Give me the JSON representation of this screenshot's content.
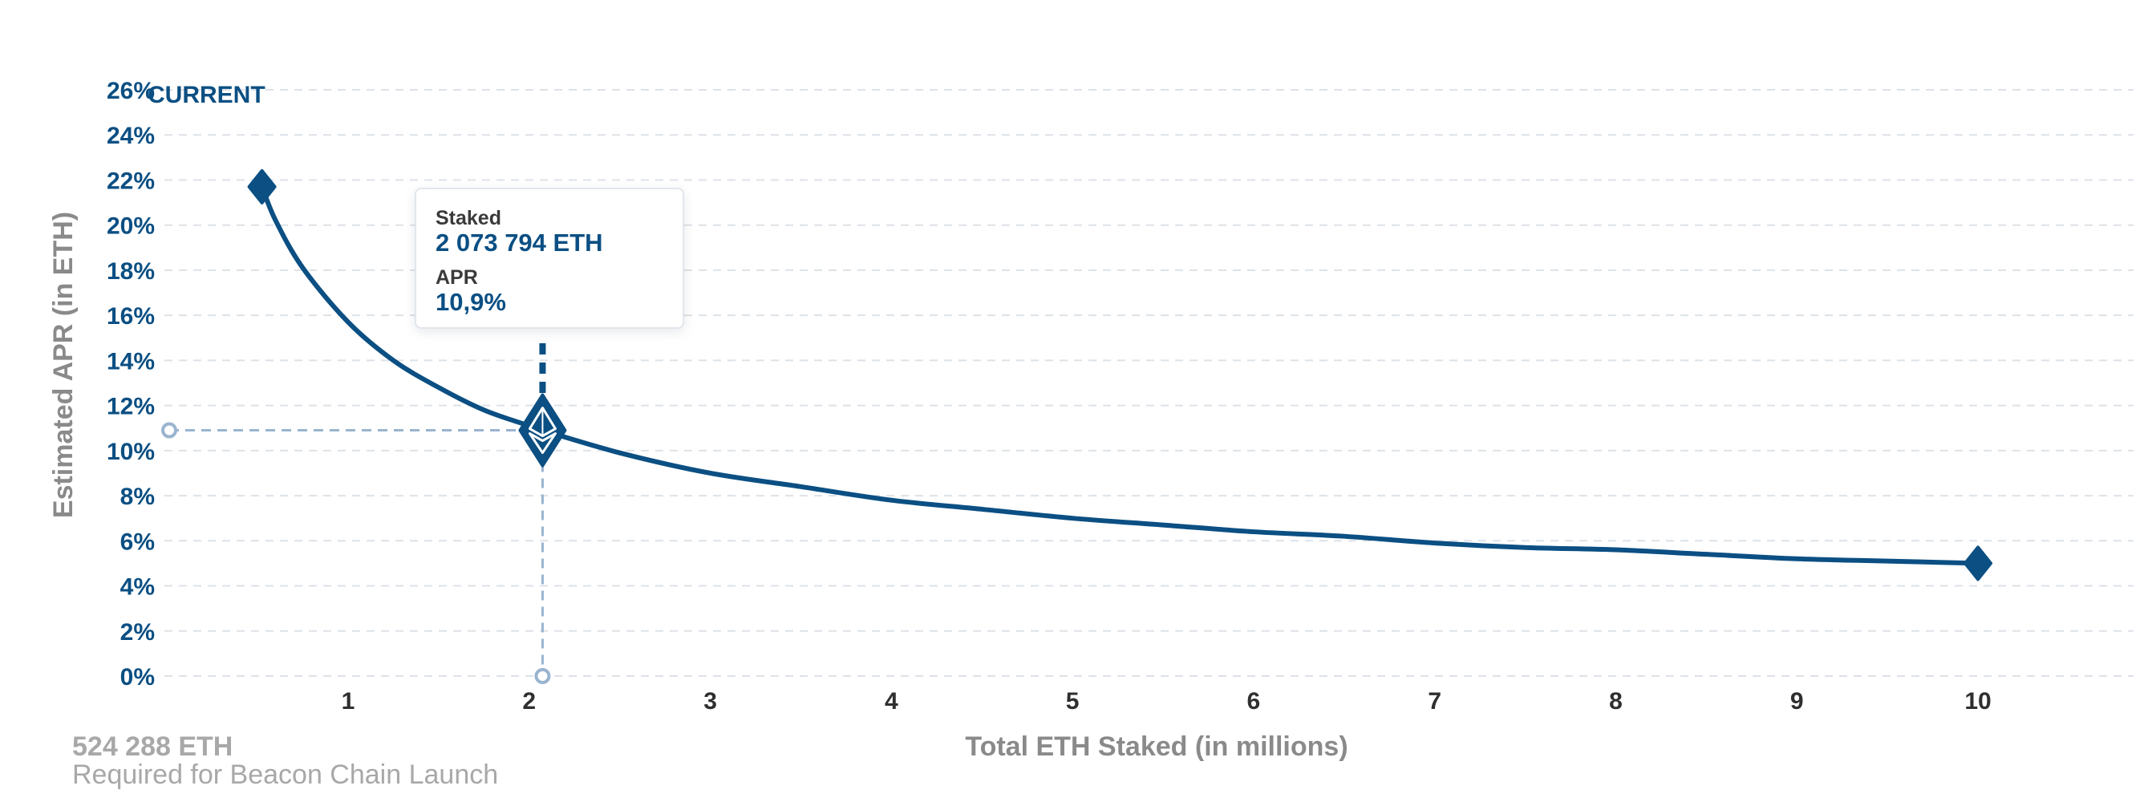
{
  "chart_data": {
    "type": "line",
    "ylabel": "Estimated APR (in ETH)",
    "xlabel": "Total ETH Staked  (in millions)",
    "ylim": [
      0,
      26
    ],
    "xlim": [
      0,
      10.8
    ],
    "yticks": [
      "0%",
      "2%",
      "4%",
      "6%",
      "8%",
      "10%",
      "12%",
      "14%",
      "16%",
      "18%",
      "20%",
      "22%",
      "24%",
      "26%"
    ],
    "xticks": [
      "1",
      "2",
      "3",
      "4",
      "5",
      "6",
      "7",
      "8",
      "9",
      "10"
    ],
    "grid": true,
    "series": [
      {
        "x": [
          0.524288,
          0.6,
          0.75,
          1.0,
          1.25,
          1.5,
          1.75,
          2.0,
          2.073794,
          2.5,
          3.0,
          3.5,
          4.0,
          4.5,
          5.0,
          5.5,
          6.0,
          6.5,
          7.0,
          7.5,
          8.0,
          8.5,
          9.0,
          9.5,
          10.0
        ],
        "y": [
          21.7,
          20.2,
          18.1,
          15.7,
          14.0,
          12.8,
          11.8,
          11.1,
          10.9,
          9.9,
          9.0,
          8.4,
          7.8,
          7.4,
          7.0,
          6.7,
          6.4,
          6.2,
          5.9,
          5.7,
          5.6,
          5.4,
          5.2,
          5.1,
          5.0
        ],
        "color": "#0b4f83"
      }
    ],
    "start_marker": {
      "x": 0.524288,
      "y": 21.7
    },
    "end_marker": {
      "x": 10.0,
      "y": 5.0
    },
    "current_marker": {
      "x": 2.073794,
      "y": 10.9
    }
  },
  "current_label": "CURRENT",
  "tooltip": {
    "staked_label": "Staked",
    "staked_value": "2 073 794 ETH",
    "apr_label": "APR",
    "apr_value": "10,9%"
  },
  "footnote": {
    "value": "524 288 ETH",
    "description": "Required for Beacon Chain Launch"
  },
  "colors": {
    "line": "#0b4f83",
    "guide": "#9ab4cf",
    "grid": "#dde2e8",
    "ytick": "#0b4f83",
    "xtick": "#2f2f2f",
    "axis_title": "#8a8a8a"
  }
}
